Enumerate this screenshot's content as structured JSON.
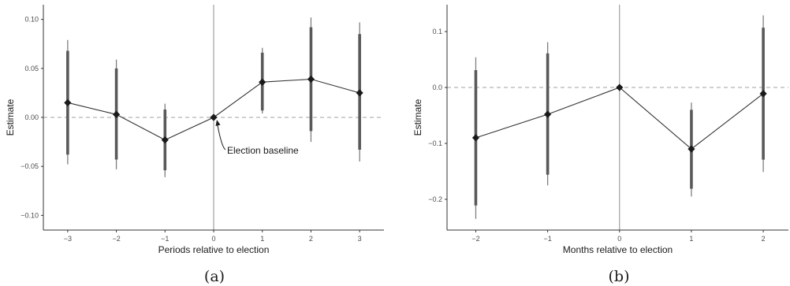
{
  "colors": {
    "point": "#1a1a1a",
    "line": "#333333",
    "ci_wide": "#7f7f7f",
    "ci_narrow": "#595959",
    "baseline_dash": "#a0a0a0",
    "vline": "#8c8c8c",
    "axis": "#333333"
  },
  "chart_data": [
    {
      "type": "line",
      "panel_label": "(a)",
      "title": "",
      "xlabel": "Periods relative to election",
      "ylabel": "Estimate",
      "xlim": [
        -3.5,
        3.5
      ],
      "ylim": [
        -0.115,
        0.115
      ],
      "x_ticks": [
        -3,
        -2,
        -1,
        0,
        1,
        2,
        3
      ],
      "x_tick_labels": [
        "−3",
        "−2",
        "−1",
        "0",
        "1",
        "2",
        "3"
      ],
      "y_ticks": [
        -0.1,
        -0.05,
        0.0,
        0.05,
        0.1
      ],
      "y_tick_labels": [
        "−0.10",
        "−0.05",
        "0.00",
        "0.05",
        "0.10"
      ],
      "reference_hline": 0,
      "reference_vline": 0,
      "series": [
        {
          "x": [
            -3,
            -2,
            -1,
            0,
            1,
            2,
            3
          ],
          "estimate": [
            0.015,
            0.003,
            -0.023,
            0.0,
            0.036,
            0.039,
            0.025
          ],
          "ci_wide_low": [
            -0.048,
            -0.053,
            -0.061,
            0.0,
            0.004,
            -0.025,
            -0.045
          ],
          "ci_wide_high": [
            0.079,
            0.059,
            0.014,
            0.0,
            0.071,
            0.102,
            0.097
          ],
          "ci_narrow_low": [
            -0.038,
            -0.043,
            -0.054,
            0.0,
            0.007,
            -0.014,
            -0.033
          ],
          "ci_narrow_high": [
            0.068,
            0.05,
            0.008,
            0.0,
            0.066,
            0.092,
            0.085
          ]
        }
      ],
      "annotation": {
        "text": "Election baseline",
        "x": 0,
        "y": 0
      }
    },
    {
      "type": "line",
      "panel_label": "(b)",
      "title": "",
      "xlabel": "Months relative to election",
      "ylabel": "Estimate",
      "xlim": [
        -2.4,
        2.35
      ],
      "ylim": [
        -0.255,
        0.148
      ],
      "x_ticks": [
        -2,
        -1,
        0,
        1,
        2
      ],
      "x_tick_labels": [
        "−2",
        "−1",
        "0",
        "1",
        "2"
      ],
      "y_ticks": [
        -0.2,
        -0.1,
        0.0,
        0.1
      ],
      "y_tick_labels": [
        "−0.2",
        "−0.1",
        "0.0",
        "0.1"
      ],
      "reference_hline": 0,
      "reference_vline": 0,
      "series": [
        {
          "x": [
            -2,
            -1,
            0,
            1,
            2
          ],
          "estimate": [
            -0.09,
            -0.048,
            0.0,
            -0.11,
            -0.011
          ],
          "ci_wide_low": [
            -0.235,
            -0.175,
            0.0,
            -0.195,
            -0.151
          ],
          "ci_wide_high": [
            0.054,
            0.081,
            0.0,
            -0.027,
            0.129
          ],
          "ci_narrow_low": [
            -0.211,
            -0.156,
            0.0,
            -0.181,
            -0.129
          ],
          "ci_narrow_high": [
            0.031,
            0.061,
            0.0,
            -0.04,
            0.107
          ]
        }
      ]
    }
  ]
}
